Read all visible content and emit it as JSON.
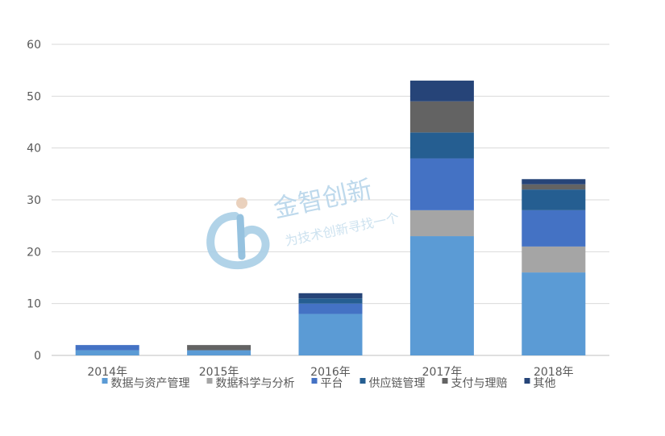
{
  "watermark": {
    "title": "金智创新",
    "slogan": "为技术创新寻找一个"
  },
  "chart_data": {
    "type": "bar",
    "stacked": true,
    "categories": [
      "2014年",
      "2015年",
      "2016年",
      "2017年",
      "2018年"
    ],
    "series": [
      {
        "name": "数据与资产管理",
        "color": "#5b9bd5",
        "values": [
          1,
          1,
          8,
          23,
          16
        ]
      },
      {
        "name": "数据科学与分析",
        "color": "#a5a5a5",
        "values": [
          0,
          0,
          0,
          5,
          5
        ]
      },
      {
        "name": "平台",
        "color": "#4472c4",
        "values": [
          1,
          0,
          2,
          10,
          7
        ]
      },
      {
        "name": "供应链管理",
        "color": "#255e91",
        "values": [
          0,
          0,
          1,
          5,
          4
        ]
      },
      {
        "name": "支付与理赔",
        "color": "#636363",
        "values": [
          0,
          1,
          0,
          6,
          1
        ]
      },
      {
        "name": "其他",
        "color": "#264478",
        "values": [
          0,
          0,
          1,
          4,
          1
        ]
      }
    ],
    "yticks": [
      0,
      10,
      20,
      30,
      40,
      50,
      60
    ],
    "ylim": [
      0,
      60
    ],
    "grid": true,
    "legend": "bottom",
    "title": "",
    "xlabel": "",
    "ylabel": ""
  }
}
